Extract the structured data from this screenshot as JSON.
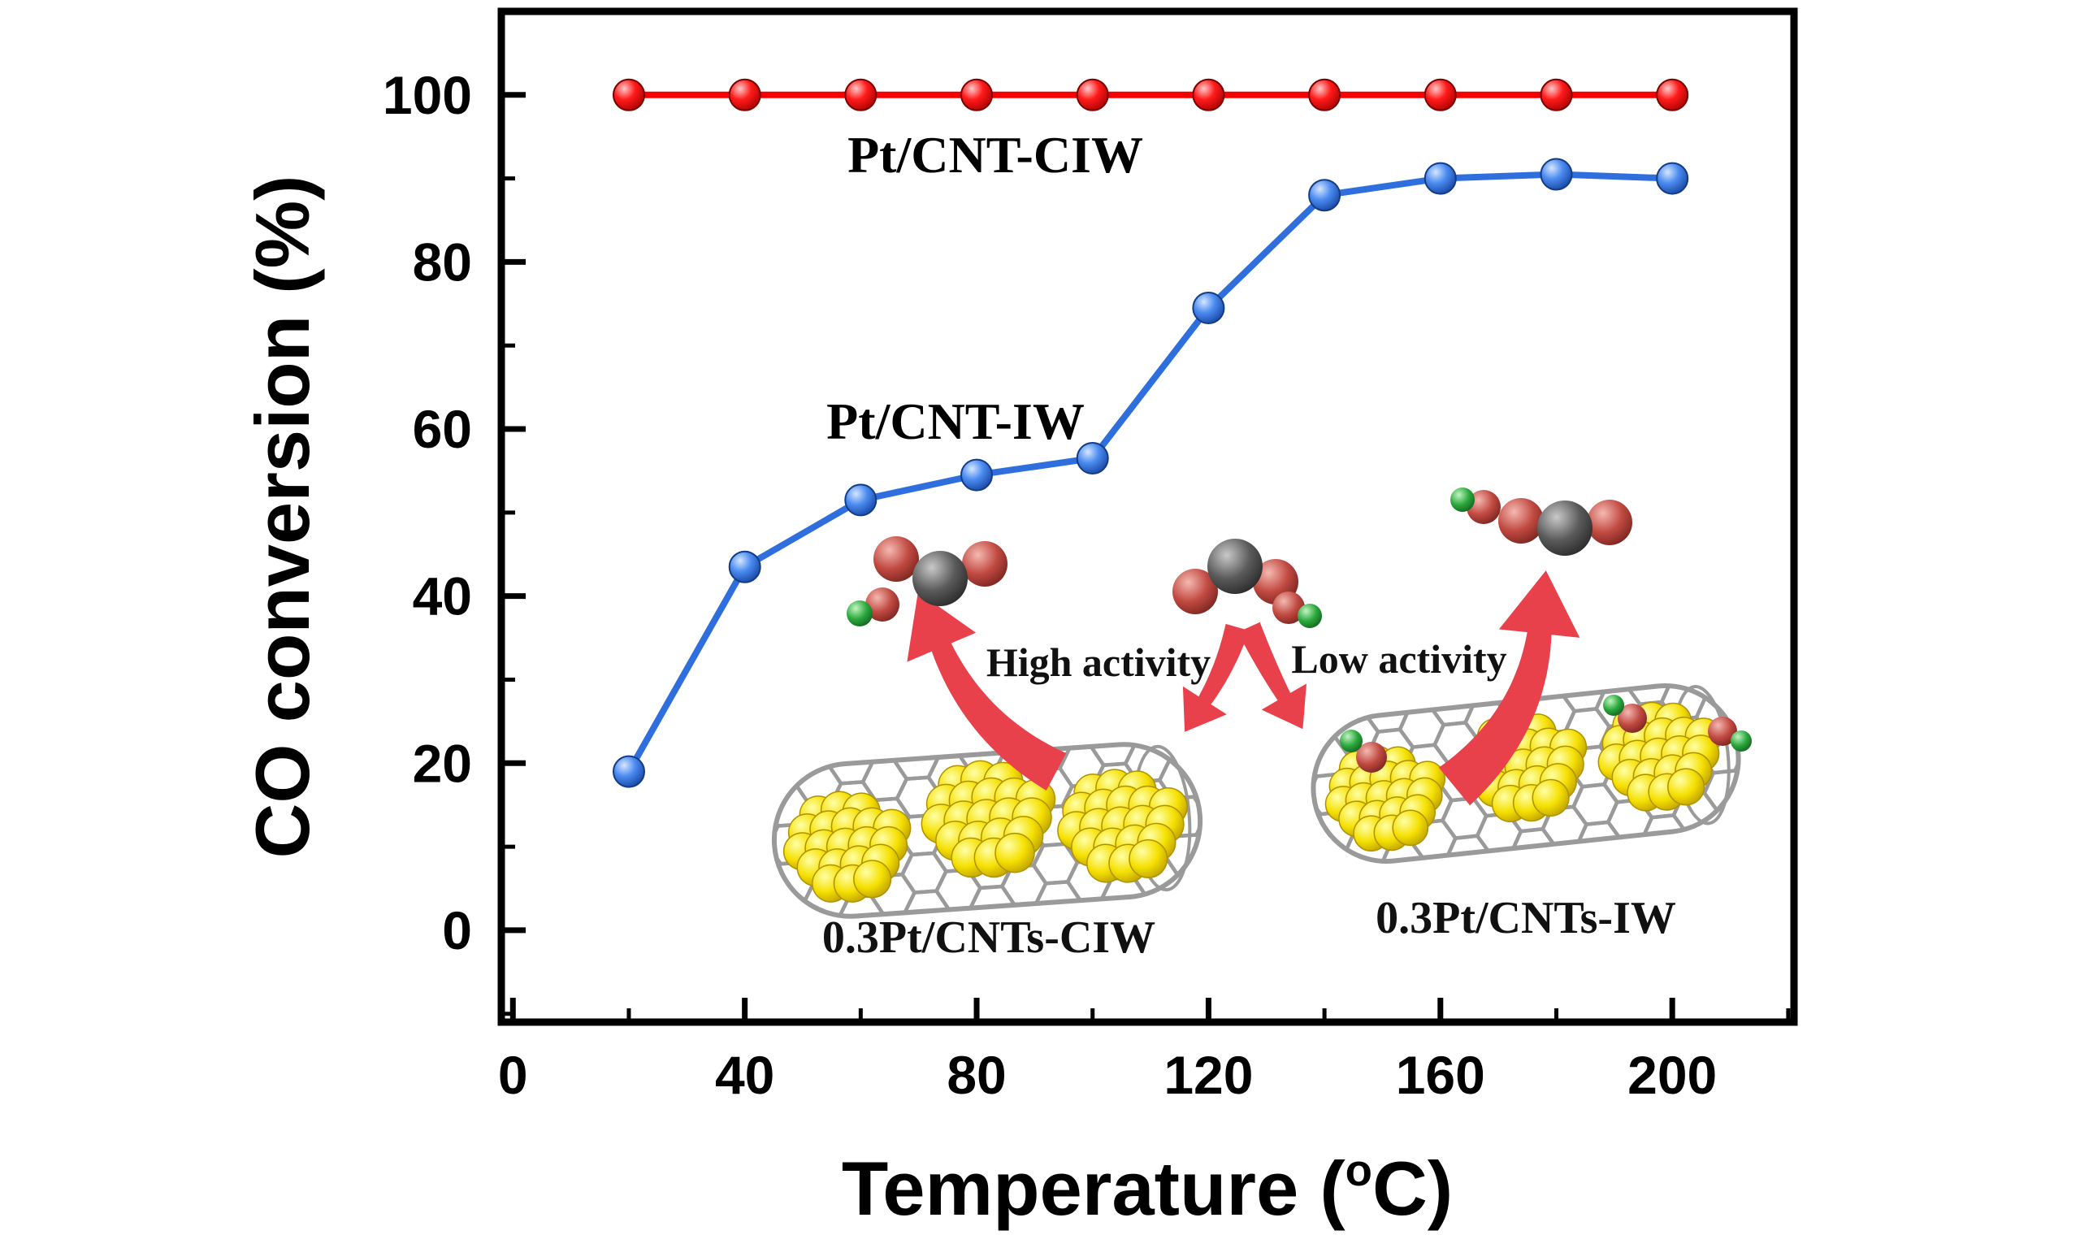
{
  "figure": {
    "background": "#ffffff",
    "description": "CO conversion vs temperature plot comparing Pt/CNT catalysts with nanotube schematic insets"
  },
  "chart_data": {
    "type": "line",
    "title": "",
    "xlabel": "Temperature (°C)",
    "xlabel_parts": {
      "pre": "Temperature (",
      "sup": "o",
      "post": "C)"
    },
    "ylabel": "CO conversion (%)",
    "xlim": [
      -2,
      221
    ],
    "ylim": [
      -11,
      110
    ],
    "x_ticks": [
      0,
      40,
      80,
      120,
      160,
      200
    ],
    "x_minor_ticks": [
      20,
      60,
      100,
      140,
      180,
      220
    ],
    "y_ticks": [
      0,
      20,
      40,
      60,
      80,
      100
    ],
    "y_minor_ticks": [
      -10,
      10,
      30,
      50,
      70,
      90
    ],
    "grid": false,
    "legend_position": "inline labels inside plot area",
    "x": [
      20,
      40,
      60,
      80,
      100,
      120,
      140,
      160,
      180,
      200
    ],
    "series": [
      {
        "name": "Pt/CNT-CIW",
        "color": "#f40000",
        "marker": "sphere",
        "values": [
          100,
          100,
          100,
          100,
          100,
          100,
          100,
          100,
          100,
          100
        ]
      },
      {
        "name": "Pt/CNT-IW",
        "color": "#2f6fdd",
        "marker": "sphere",
        "values": [
          19,
          43.5,
          51.5,
          54.5,
          56.5,
          74.5,
          88,
          90,
          90.5,
          90
        ]
      }
    ],
    "annotations": {
      "high_activity": "High activity",
      "low_activity": "Low activity",
      "cnt_left_caption": "0.3Pt/CNTs-CIW",
      "cnt_right_caption": "0.3Pt/CNTs-IW"
    }
  },
  "icons": {
    "co2_molecule": "grey carbon sphere bonded to two red oxygen spheres",
    "o_atom_pair": "small green sphere attached to small red sphere",
    "pt_cluster": "cluster of yellow platinum spheres",
    "cnt_tube": "grey hexagonal carbon-nanotube wireframe capsule",
    "red_arrow": "thick curved red reaction arrow"
  },
  "colors": {
    "series_ciw_red": "#f40000",
    "series_iw_blue": "#2f6fdd",
    "arrow_red": "#e8414b",
    "pt_yellow": "#f5e000",
    "cnt_grey": "#9a9a9a",
    "carbon_grey": "#555555",
    "oxygen_red": "#c14a42",
    "atom_green": "#2aa83c",
    "axis": "#000000",
    "annotation_text": "#111111"
  }
}
